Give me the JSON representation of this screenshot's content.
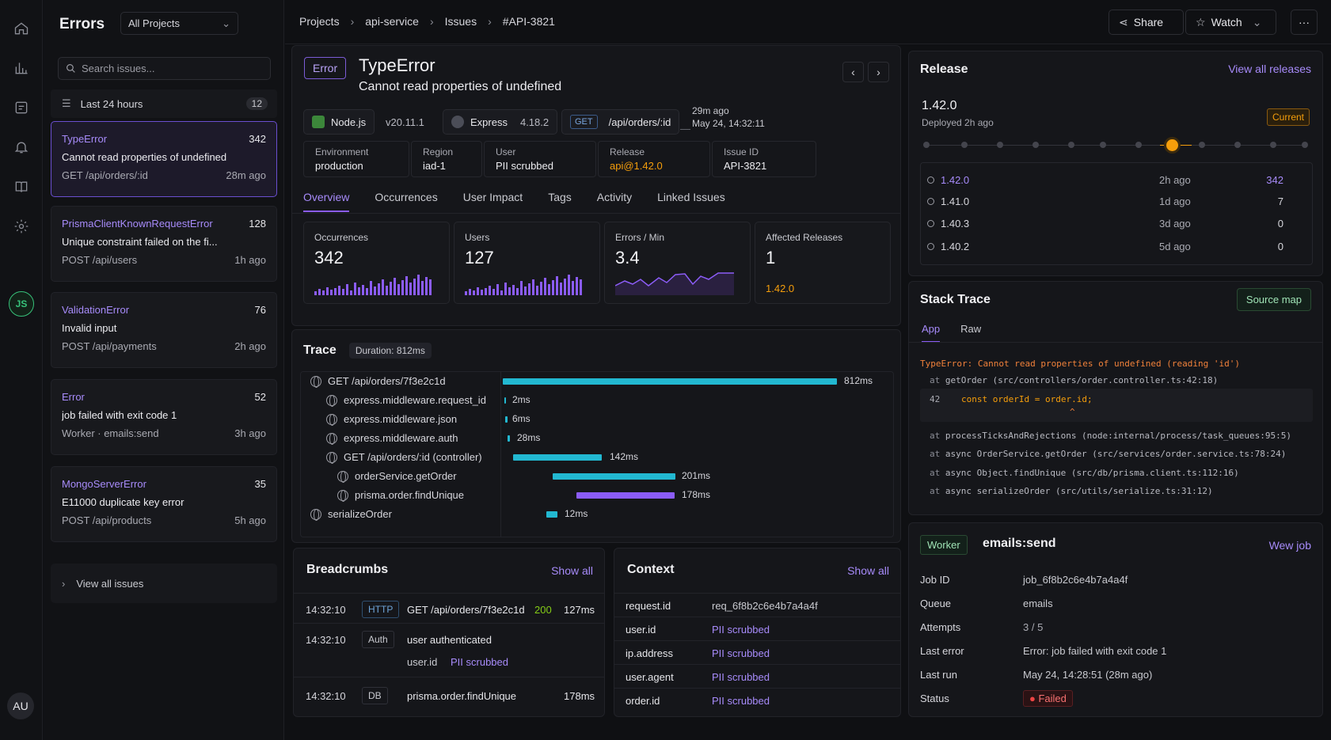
{
  "rail": {
    "icons": [
      "home-icon",
      "chart-icon",
      "board-icon",
      "bell-icon",
      "book-icon",
      "gear-icon"
    ],
    "platform_badge": "JS",
    "avatar": "AU"
  },
  "issues_panel": {
    "title": "Errors",
    "project_select": "All Projects",
    "search_placeholder": "Search issues...",
    "filter_label": "Last 24 hours",
    "filter_count": "12",
    "items": [
      {
        "type": "TypeError",
        "count": "342",
        "message": "Cannot read properties of undefined",
        "route": "GET /api/orders/:id",
        "age": "28m ago"
      },
      {
        "type": "PrismaClientKnownRequestError",
        "count": "128",
        "message": "Unique constraint failed on the fi...",
        "route": "POST /api/users",
        "age": "1h ago"
      },
      {
        "type": "ValidationError",
        "count": "76",
        "message": "Invalid input",
        "route": "POST /api/payments",
        "age": "2h ago"
      },
      {
        "type": "Error",
        "count": "52",
        "message": "job failed with exit code 1",
        "route": "Worker · emails:send",
        "age": "3h ago"
      },
      {
        "type": "MongoServerError",
        "count": "35",
        "message": "E11000 duplicate key error",
        "route": "POST /api/products",
        "age": "5h ago"
      }
    ],
    "view_all": "View all issues"
  },
  "topbar": {
    "crumbs": [
      "Projects",
      "api-service",
      "Issues",
      "#API-3821"
    ],
    "share": "Share",
    "watch": "Watch",
    "more": "···"
  },
  "issue": {
    "badge": "Error",
    "title": "TypeError",
    "subtitle": "Cannot read properties of undefined",
    "runtime": "Node.js",
    "runtime_version": "v20.11.1",
    "framework": "Express",
    "framework_version": "4.18.2",
    "method": "GET",
    "route": "/api/orders/:id",
    "time_ago": "29m ago",
    "timestamp": "May 24, 14:32:11",
    "fields": [
      {
        "key": "Environment",
        "value": "production"
      },
      {
        "key": "Region",
        "value": "iad-1"
      },
      {
        "key": "User",
        "value": "PII scrubbed"
      },
      {
        "key": "Release",
        "value": "api@1.42.0"
      },
      {
        "key": "Issue ID",
        "value": "API-3821"
      }
    ],
    "tabs": [
      "Overview",
      "Occurrences",
      "User Impact",
      "Tags",
      "Activity",
      "Linked Issues"
    ],
    "stats": [
      {
        "label": "Occurrences",
        "value": "342"
      },
      {
        "label": "Users",
        "value": "127"
      },
      {
        "label": "Errors / Min",
        "value": "3.4"
      },
      {
        "label": "Affected Releases",
        "value": "1",
        "sub": "1.42.0"
      }
    ]
  },
  "trace": {
    "title": "Trace",
    "duration": "Duration: 812ms",
    "spans": [
      {
        "name": "GET /api/orders/7f3e2c1d",
        "ms": "812ms"
      },
      {
        "name": "express.middleware.request_id",
        "ms": "2ms"
      },
      {
        "name": "express.middleware.json",
        "ms": "6ms"
      },
      {
        "name": "express.middleware.auth",
        "ms": "28ms"
      },
      {
        "name": "GET /api/orders/:id (controller)",
        "ms": "142ms"
      },
      {
        "name": "orderService.getOrder",
        "ms": "201ms"
      },
      {
        "name": "prisma.order.findUnique",
        "ms": "178ms"
      },
      {
        "name": "serializeOrder",
        "ms": "12ms"
      }
    ]
  },
  "breadcrumbs": {
    "title": "Breadcrumbs",
    "show_all": "Show all",
    "rows": [
      {
        "time": "14:32:10",
        "tag": "HTTP",
        "text": "GET /api/orders/7f3e2c1d",
        "status": "200",
        "dur": "127ms"
      },
      {
        "time": "14:32:10",
        "tag": "Auth",
        "text": "user authenticated",
        "sub_key": "user.id",
        "sub_val": "PII scrubbed"
      },
      {
        "time": "14:32:10",
        "tag": "DB",
        "text": "prisma.order.findUnique",
        "dur": "178ms"
      }
    ]
  },
  "context": {
    "title": "Context",
    "show_all": "Show all",
    "rows": [
      {
        "key": "request.id",
        "value": "req_6f8b2c6e4b7a4a4f"
      },
      {
        "key": "user.id",
        "value": "PII scrubbed"
      },
      {
        "key": "ip.address",
        "value": "PII scrubbed"
      },
      {
        "key": "user.agent",
        "value": "PII scrubbed"
      },
      {
        "key": "order.id",
        "value": "PII scrubbed"
      }
    ]
  },
  "release": {
    "title": "Release",
    "view_all": "View all releases",
    "version": "1.42.0",
    "deployed": "Deployed 2h ago",
    "current": "Current",
    "rows": [
      {
        "version": "1.42.0",
        "age": "2h ago",
        "count": "342"
      },
      {
        "version": "1.41.0",
        "age": "1d ago",
        "count": "7"
      },
      {
        "version": "1.40.3",
        "age": "3d ago",
        "count": "0"
      },
      {
        "version": "1.40.2",
        "age": "5d ago",
        "count": "0"
      }
    ]
  },
  "stack": {
    "title": "Stack Trace",
    "source_map": "Source map",
    "tabs": [
      "App",
      "Raw"
    ],
    "error_line": "TypeError: Cannot read properties of undefined (reading 'id')",
    "frame1": "getOrder (src/controllers/order.controller.ts:42:18)",
    "code_line_no": "42",
    "code_line": "const orderId = order.id;",
    "caret": "^",
    "frames": [
      "processTicksAndRejections (node:internal/process/task_queues:95:5)",
      "async OrderService.getOrder (src/services/order.service.ts:78:24)",
      "async Object.findUnique (src/db/prisma.client.ts:112:16)",
      "async serializeOrder (src/utils/serialize.ts:31:12)"
    ],
    "at": "at"
  },
  "worker": {
    "badge": "Worker",
    "name": "emails:send",
    "link": "Wew job",
    "rows": [
      {
        "key": "Job ID",
        "value": "job_6f8b2c6e4b7a4a4f"
      },
      {
        "key": "Queue",
        "value": "emails"
      },
      {
        "key": "Attempts",
        "value": "3 / 5"
      },
      {
        "key": "Last error",
        "value": "Error: job failed with exit code 1"
      },
      {
        "key": "Last run",
        "value": "May 24, 14:28:51 (28m ago)"
      },
      {
        "key": "Status",
        "value": "Failed"
      }
    ]
  },
  "colors": {
    "accent": "#8b5cf6",
    "trace_bar": "#22b8d1",
    "trace_db": "#8b5cf6",
    "warn": "#f59e0b",
    "failed": "#ef4444"
  }
}
